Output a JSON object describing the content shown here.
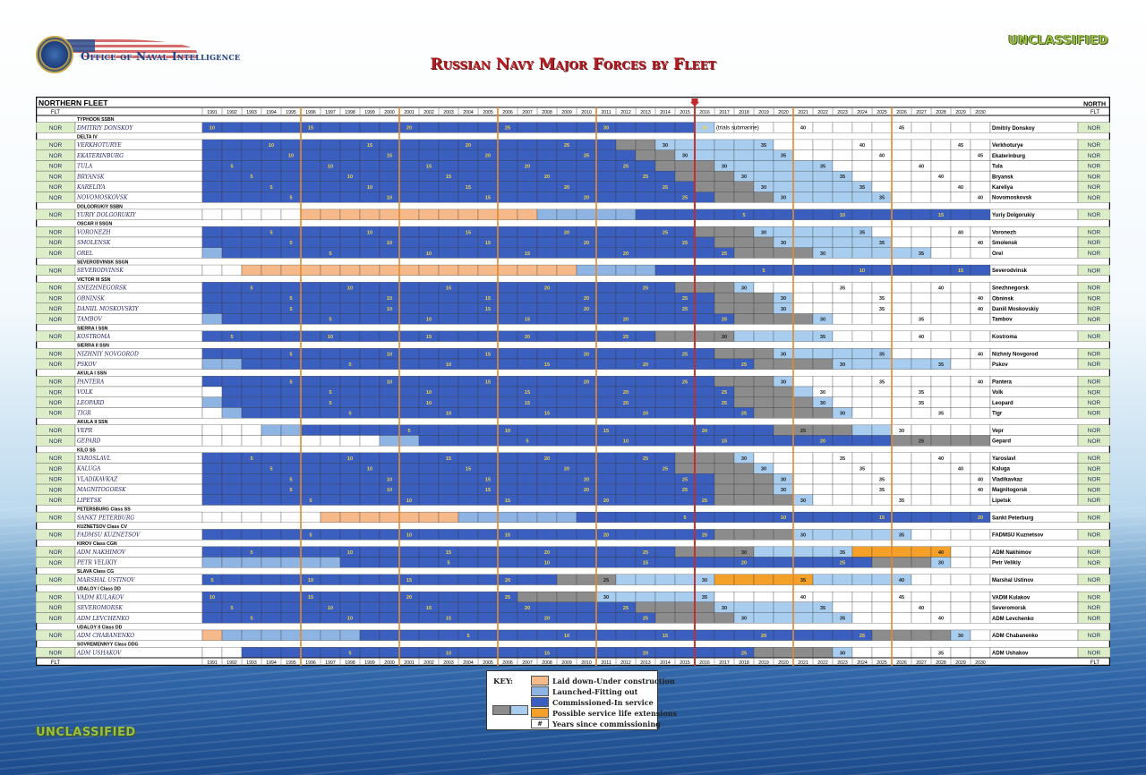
{
  "header": {
    "agency": "Office of Naval Intelligence",
    "classification_top": "UNCLASSIFIED",
    "classification_bottom": "UNCLASSIFIED",
    "title": "Russian Navy Major Forces by Fleet"
  },
  "colors": {
    "laid_down": "#f6b98a",
    "launched": "#8db4e2",
    "commissioned": "#3b5fbe",
    "extension_gray": "#8c8c8c",
    "extension_light": "#a9cdef",
    "extension_orange": "#f5a028",
    "current_year_line": "#c1272d",
    "decade_lines": "#e2882b"
  },
  "key": {
    "title": "KEY:",
    "items": [
      {
        "label": "Laid down-Under construction"
      },
      {
        "label": "Launched-Fitting out"
      },
      {
        "label": "Commissioned-In service"
      },
      {
        "label": "Possible service life extensions"
      },
      {
        "label": "Years since commissioning",
        "symbol": "#"
      }
    ]
  },
  "chart_data": {
    "type": "table",
    "fleet_title": "NORTHERN FLEET",
    "fleet_right": "NORTH",
    "flt_header": "FLT",
    "current_year": 2016,
    "years": [
      1991,
      1992,
      1993,
      1994,
      1995,
      1996,
      1997,
      1998,
      1999,
      2000,
      2001,
      2002,
      2003,
      2004,
      2005,
      2006,
      2007,
      2008,
      2009,
      2010,
      2011,
      2012,
      2013,
      2014,
      2015,
      2016,
      2017,
      2018,
      2019,
      2020,
      2021,
      2022,
      2023,
      2024,
      2025,
      2026,
      2027,
      2028,
      2029,
      2030
    ],
    "rows": [
      {
        "kind": "class",
        "label": "TYPHOON SSBN"
      },
      {
        "kind": "ship",
        "fleet": "NOR",
        "name": "DMITRIY DONSKOY",
        "right": "Dmitriy Donskoy",
        "note": "(trials submarine)",
        "commissioned": 1981,
        "service_end": 2016,
        "ext": [
          [
            2016,
            2016,
            "l"
          ]
        ]
      },
      {
        "kind": "class",
        "label": "DELTA IV"
      },
      {
        "kind": "ship",
        "fleet": "NOR",
        "name": "VERKHOTURYE",
        "right": "Verkhoturye",
        "commissioned": 1984,
        "service_end": 2011,
        "ext": [
          [
            2012,
            2013,
            "g"
          ],
          [
            2014,
            2019,
            "l"
          ]
        ]
      },
      {
        "kind": "ship",
        "fleet": "NOR",
        "name": "EKATERINBURG",
        "right": "Ekaterinburg",
        "commissioned": 1985,
        "service_end": 2012,
        "ext": [
          [
            2013,
            2014,
            "g"
          ],
          [
            2015,
            2020,
            "l"
          ]
        ]
      },
      {
        "kind": "ship",
        "fleet": "NOR",
        "name": "TULA",
        "right": "Tula",
        "commissioned": 1987,
        "service_end": 2013,
        "ext": [
          [
            2014,
            2016,
            "g"
          ],
          [
            2017,
            2022,
            "l"
          ]
        ]
      },
      {
        "kind": "ship",
        "fleet": "NOR",
        "name": "BRYANSK",
        "right": "Bryansk",
        "commissioned": 1988,
        "service_end": 2014,
        "ext": [
          [
            2015,
            2017,
            "g"
          ],
          [
            2018,
            2023,
            "l"
          ]
        ]
      },
      {
        "kind": "ship",
        "fleet": "NOR",
        "name": "KARELIYA",
        "right": "Kareliya",
        "commissioned": 1989,
        "service_end": 2015,
        "ext": [
          [
            2016,
            2018,
            "g"
          ],
          [
            2019,
            2024,
            "l"
          ]
        ]
      },
      {
        "kind": "ship",
        "fleet": "NOR",
        "name": "NOVOMOSKOVSK",
        "right": "Novomoskovsk",
        "commissioned": 1990,
        "service_end": 2016,
        "ext": [
          [
            2017,
            2019,
            "g"
          ],
          [
            2020,
            2025,
            "l"
          ]
        ]
      },
      {
        "kind": "class",
        "label": "DOLGORUKIY SSBN"
      },
      {
        "kind": "ship",
        "fleet": "NOR",
        "name": "YURIY DOLGORUKIY",
        "right": "Yuriy Dolgorukiy",
        "laid_down": 1996,
        "launched": 2008,
        "commissioned": 2013
      },
      {
        "kind": "class",
        "label": "OSCAR II SSGN"
      },
      {
        "kind": "ship",
        "fleet": "NOR",
        "name": "VORONEZH",
        "right": "Voronezh",
        "commissioned": 1989,
        "service_end": 2015,
        "ext": [
          [
            2016,
            2018,
            "g"
          ],
          [
            2019,
            2024,
            "l"
          ]
        ]
      },
      {
        "kind": "ship",
        "fleet": "NOR",
        "name": "SMOLENSK",
        "right": "Smolensk",
        "commissioned": 1990,
        "service_end": 2016,
        "ext": [
          [
            2017,
            2019,
            "g"
          ],
          [
            2020,
            2025,
            "l"
          ]
        ]
      },
      {
        "kind": "ship",
        "fleet": "NOR",
        "name": "OREL",
        "right": "Orel",
        "launched": 1991,
        "commissioned": 1992,
        "service_end": 2017,
        "ext": [
          [
            2018,
            2021,
            "g"
          ],
          [
            2022,
            2027,
            "l"
          ]
        ]
      },
      {
        "kind": "class",
        "label": "SEVERODVINSK SSGN"
      },
      {
        "kind": "ship",
        "fleet": "NOR",
        "name": "SEVERODVINSK",
        "right": "Severodvinsk",
        "laid_down": 1993,
        "launched": 2010,
        "commissioned": 2014
      },
      {
        "kind": "class",
        "label": "VICTOR III SSN"
      },
      {
        "kind": "ship",
        "fleet": "NOR",
        "name": "SNEZHNEGORSK",
        "right": "Snezhnegorsk",
        "commissioned": 1988,
        "service_end": 2014,
        "ext": [
          [
            2015,
            2017,
            "g"
          ],
          [
            2018,
            2018,
            "l"
          ]
        ]
      },
      {
        "kind": "ship",
        "fleet": "NOR",
        "name": "OBNINSK",
        "right": "Obninsk",
        "commissioned": 1990,
        "service_end": 2016,
        "ext": [
          [
            2017,
            2019,
            "g"
          ],
          [
            2020,
            2020,
            "l"
          ]
        ]
      },
      {
        "kind": "ship",
        "fleet": "NOR",
        "name": "DANIIL MOSKOVSKIY",
        "right": "Daniil Moskovskiy",
        "commissioned": 1990,
        "service_end": 2016,
        "ext": [
          [
            2017,
            2019,
            "g"
          ],
          [
            2020,
            2020,
            "l"
          ]
        ]
      },
      {
        "kind": "ship",
        "fleet": "NOR",
        "name": "TAMBOV",
        "right": "Tambov",
        "launched": 1991,
        "commissioned": 1992,
        "service_end": 2017,
        "ext": [
          [
            2018,
            2021,
            "g"
          ],
          [
            2022,
            2022,
            "l"
          ]
        ]
      },
      {
        "kind": "class",
        "label": "SIERRA I SSN"
      },
      {
        "kind": "ship",
        "fleet": "NOR",
        "name": "KOSTROMA",
        "right": "Kostroma",
        "commissioned": 1987,
        "service_end": 2013,
        "ext": [
          [
            2014,
            2017,
            "g"
          ],
          [
            2018,
            2022,
            "l"
          ]
        ]
      },
      {
        "kind": "class",
        "label": "SIERRA II SSN"
      },
      {
        "kind": "ship",
        "fleet": "NOR",
        "name": "NIZHNIY NOVGOROD",
        "right": "Nizhniy Novgorod",
        "commissioned": 1990,
        "service_end": 2016,
        "ext": [
          [
            2017,
            2019,
            "g"
          ],
          [
            2020,
            2025,
            "l"
          ]
        ]
      },
      {
        "kind": "ship",
        "fleet": "NOR",
        "name": "PSKOV",
        "right": "Pskov",
        "launched": 1991,
        "commissioned": 1993,
        "service_end": 2018,
        "ext": [
          [
            2019,
            2022,
            "g"
          ],
          [
            2023,
            2028,
            "l"
          ]
        ]
      },
      {
        "kind": "class",
        "label": "AKULA I SSN"
      },
      {
        "kind": "ship",
        "fleet": "NOR",
        "name": "PANTERA",
        "right": "Pantera",
        "commissioned": 1990,
        "service_end": 2016,
        "ext": [
          [
            2017,
            2019,
            "g"
          ],
          [
            2020,
            2020,
            "l"
          ]
        ]
      },
      {
        "kind": "ship",
        "fleet": "NOR",
        "name": "VOLK",
        "right": "Volk",
        "commissioned": 1992,
        "service_end": 2017,
        "ext": [
          [
            2018,
            2020,
            "g"
          ],
          [
            2021,
            2021,
            "l"
          ]
        ]
      },
      {
        "kind": "ship",
        "fleet": "NOR",
        "name": "LEOPARD",
        "right": "Leopard",
        "launched": 1991,
        "commissioned": 1992,
        "service_end": 2017,
        "ext": [
          [
            2018,
            2021,
            "g"
          ],
          [
            2022,
            2022,
            "l"
          ]
        ]
      },
      {
        "kind": "ship",
        "fleet": "NOR",
        "name": "TIGR",
        "right": "Tigr",
        "launched": 1992,
        "commissioned": 1993,
        "service_end": 2018,
        "ext": [
          [
            2019,
            2022,
            "g"
          ],
          [
            2023,
            2023,
            "l"
          ]
        ]
      },
      {
        "kind": "class",
        "label": "AKULA II SSN"
      },
      {
        "kind": "ship",
        "fleet": "NOR",
        "name": "VEPR",
        "right": "Vepr",
        "launched": 1994,
        "commissioned": 1996,
        "service_end": 2019,
        "ext": [
          [
            2020,
            2023,
            "g"
          ],
          [
            2024,
            2025,
            "l"
          ]
        ]
      },
      {
        "kind": "ship",
        "fleet": "NOR",
        "name": "GEPARD",
        "right": "Gepard",
        "launched": 2000,
        "commissioned": 2002,
        "service_end": 2025,
        "ext": [
          [
            2026,
            2030,
            "g"
          ]
        ]
      },
      {
        "kind": "class",
        "label": "KILO SS"
      },
      {
        "kind": "ship",
        "fleet": "NOR",
        "name": "YAROSLAVL",
        "right": "Yaroslavl",
        "commissioned": 1988,
        "service_end": 2014,
        "ext": [
          [
            2015,
            2017,
            "g"
          ],
          [
            2018,
            2018,
            "l"
          ]
        ]
      },
      {
        "kind": "ship",
        "fleet": "NOR",
        "name": "KALUGA",
        "right": "Kaluga",
        "commissioned": 1989,
        "service_end": 2014,
        "ext": [
          [
            2015,
            2018,
            "g"
          ],
          [
            2019,
            2019,
            "l"
          ]
        ]
      },
      {
        "kind": "ship",
        "fleet": "NOR",
        "name": "VLADIKAVKAZ",
        "right": "Vladikavkaz",
        "commissioned": 1990,
        "service_end": 2016,
        "ext": [
          [
            2017,
            2019,
            "g"
          ],
          [
            2020,
            2020,
            "l"
          ]
        ]
      },
      {
        "kind": "ship",
        "fleet": "NOR",
        "name": "MAGNITOGORSK",
        "right": "Magnitogorsk",
        "commissioned": 1990,
        "service_end": 2016,
        "ext": [
          [
            2017,
            2019,
            "g"
          ],
          [
            2020,
            2020,
            "l"
          ]
        ]
      },
      {
        "kind": "ship",
        "fleet": "NOR",
        "name": "LIPETSK",
        "right": "Lipetsk",
        "commissioned": 1991,
        "service_end": 2016,
        "ext": [
          [
            2017,
            2020,
            "g"
          ],
          [
            2021,
            2021,
            "l"
          ]
        ]
      },
      {
        "kind": "class",
        "label": "PETERSBURG Class SS"
      },
      {
        "kind": "ship",
        "fleet": "NOR",
        "name": "SANKT PETERBURG",
        "right": "Sankt Peterburg",
        "laid_down": 1997,
        "launched": 2004,
        "commissioned": 2010
      },
      {
        "kind": "class",
        "label": "KUZNETSOV Class CV"
      },
      {
        "kind": "ship",
        "fleet": "NOR",
        "name": "FADMSU KUZNETSOV",
        "right": "FADMSU Kuznetsov",
        "commissioned": 1991,
        "service_end": 2016,
        "ext": [
          [
            2017,
            2020,
            "g"
          ],
          [
            2021,
            2026,
            "l"
          ]
        ]
      },
      {
        "kind": "class",
        "label": "KIROV Class CGN"
      },
      {
        "kind": "ship",
        "fleet": "NOR",
        "name": "ADM NAKHIMOV",
        "right": "ADM Nakhimov",
        "commissioned": 1988,
        "service_end": 2014,
        "ext": [
          [
            2015,
            2018,
            "g"
          ],
          [
            2019,
            2023,
            "l"
          ],
          [
            2024,
            2028,
            "o"
          ]
        ]
      },
      {
        "kind": "ship",
        "fleet": "NOR",
        "name": "PETR VELIKIY",
        "right": "Petr Velikiy",
        "launched": 1991,
        "commissioned": 1998,
        "service_end": 2024,
        "ext": [
          [
            2025,
            2027,
            "g"
          ],
          [
            2028,
            2028,
            "l"
          ]
        ]
      },
      {
        "kind": "class",
        "label": "SLAVA Class CG"
      },
      {
        "kind": "ship",
        "fleet": "NOR",
        "name": "MARSHAL USTINOV",
        "right": "Marshal Ustinov",
        "commissioned": 1986,
        "service_end": 2008,
        "ext": [
          [
            2009,
            2011,
            "g"
          ],
          [
            2012,
            2016,
            "l"
          ],
          [
            2017,
            2021,
            "o"
          ],
          [
            2022,
            2026,
            "l"
          ]
        ]
      },
      {
        "kind": "class",
        "label": "UDALOY I Class DD"
      },
      {
        "kind": "ship",
        "fleet": "NOR",
        "name": "VADM KULAKOV",
        "right": "VADM Kulakov",
        "commissioned": 1981,
        "service_end": 2006,
        "ext": [
          [
            2007,
            2010,
            "g"
          ],
          [
            2011,
            2016,
            "l"
          ]
        ]
      },
      {
        "kind": "ship",
        "fleet": "NOR",
        "name": "SEVEROMORSK",
        "right": "Severomorsk",
        "commissioned": 1987,
        "service_end": 2012,
        "ext": [
          [
            2013,
            2016,
            "g"
          ],
          [
            2017,
            2022,
            "l"
          ]
        ]
      },
      {
        "kind": "ship",
        "fleet": "NOR",
        "name": "ADM LEVCHENKO",
        "right": "ADM Levchenko",
        "commissioned": 1988,
        "service_end": 2013,
        "ext": [
          [
            2014,
            2017,
            "g"
          ],
          [
            2018,
            2023,
            "l"
          ]
        ]
      },
      {
        "kind": "class",
        "label": "UDALOY II Class DD"
      },
      {
        "kind": "ship",
        "fleet": "NOR",
        "name": "ADM CHABANENKO",
        "right": "ADM Chabanenko",
        "laid_down": 1991,
        "launched": 1992,
        "commissioned": 1999,
        "service_end": 2024,
        "ext": [
          [
            2025,
            2028,
            "g"
          ],
          [
            2029,
            2029,
            "l"
          ]
        ]
      },
      {
        "kind": "class",
        "label": "SOVREMENNYY Class DDG"
      },
      {
        "kind": "ship",
        "fleet": "NOR",
        "name": "ADM USHAKOV",
        "right": "ADM Ushakov",
        "commissioned": 1993,
        "service_end": 2018,
        "ext": [
          [
            2019,
            2022,
            "g"
          ],
          [
            2023,
            2023,
            "l"
          ]
        ]
      }
    ]
  }
}
